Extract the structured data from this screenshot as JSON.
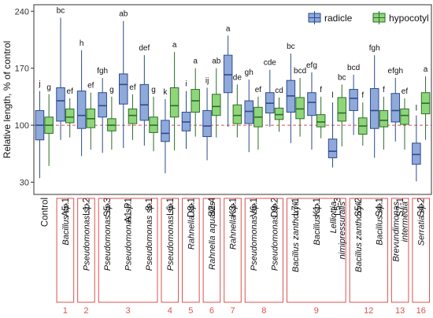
{
  "chart_data": {
    "type": "box",
    "ylabel": "Relative length, % of control",
    "yticks": [
      30,
      100,
      170,
      240
    ],
    "ylim": [
      15,
      248
    ],
    "reference_line": 100,
    "grid": false,
    "legend_position": "top-right",
    "series": [
      {
        "key": "radicle",
        "name": "radicle",
        "fill": "#8FA9DB",
        "stroke": "#2E4A8C"
      },
      {
        "key": "hypocotyl",
        "name": "hypocotyl",
        "fill": "#8FD67A",
        "stroke": "#2E6B2A"
      }
    ],
    "categories": [
      "Control",
      "A5-1",
      "L1-2",
      "S5-3",
      "A1-P1",
      "8-1",
      "L6-1",
      "D8-1",
      "S2-4",
      "K3-1",
      "V6-1",
      "D9-2",
      "L7-1",
      "K1-1",
      "L5-3",
      "S5-2",
      "S4-1",
      "S7-1",
      "S4-2"
    ],
    "boxes": [
      {
        "category": "Control",
        "radicle": {
          "min": 35,
          "q1": 82,
          "median": 100,
          "q3": 118,
          "max": 142,
          "letter": "j"
        },
        "hypocotyl": {
          "min": 50,
          "q1": 90,
          "median": 100,
          "q3": 110,
          "max": 138,
          "letter": "g"
        }
      },
      {
        "category": "A5-1",
        "radicle": {
          "min": 82,
          "q1": 105,
          "median": 130,
          "q3": 146,
          "max": 232,
          "letter": "bc"
        },
        "hypocotyl": {
          "min": 85,
          "q1": 103,
          "median": 110,
          "q3": 120,
          "max": 133,
          "letter": "ef"
        }
      },
      {
        "category": "L1-2",
        "radicle": {
          "min": 62,
          "q1": 96,
          "median": 112,
          "q3": 142,
          "max": 192,
          "letter": "h"
        },
        "hypocotyl": {
          "min": 70,
          "q1": 97,
          "median": 108,
          "q3": 120,
          "max": 140,
          "letter": "ef"
        }
      },
      {
        "category": "S5-3",
        "radicle": {
          "min": 66,
          "q1": 110,
          "median": 124,
          "q3": 140,
          "max": 158,
          "letter": "fgh"
        },
        "hypocotyl": {
          "min": 70,
          "q1": 93,
          "median": 100,
          "q3": 108,
          "max": 135,
          "letter": "g"
        }
      },
      {
        "category": "A1-P1",
        "radicle": {
          "min": 72,
          "q1": 126,
          "median": 150,
          "q3": 163,
          "max": 228,
          "letter": "ab"
        },
        "hypocotyl": {
          "min": 82,
          "q1": 102,
          "median": 112,
          "q3": 120,
          "max": 138,
          "letter": "ef"
        }
      },
      {
        "category": "8-1",
        "radicle": {
          "min": 75,
          "q1": 106,
          "median": 125,
          "q3": 150,
          "max": 186,
          "letter": "def"
        },
        "hypocotyl": {
          "min": 68,
          "q1": 91,
          "median": 100,
          "q3": 110,
          "max": 135,
          "letter": "g"
        }
      },
      {
        "category": "L6-1",
        "radicle": {
          "min": 41,
          "q1": 80,
          "median": 90,
          "q3": 106,
          "max": 132,
          "letter": "k"
        },
        "hypocotyl": {
          "min": 69,
          "q1": 110,
          "median": 124,
          "q3": 146,
          "max": 190,
          "letter": "a"
        }
      },
      {
        "category": "D8-1",
        "radicle": {
          "min": 71,
          "q1": 93,
          "median": 104,
          "q3": 116,
          "max": 142,
          "letter": "i"
        },
        "hypocotyl": {
          "min": 86,
          "q1": 116,
          "median": 130,
          "q3": 144,
          "max": 170,
          "letter": "a"
        }
      },
      {
        "category": "S2-4",
        "radicle": {
          "min": 57,
          "q1": 86,
          "median": 99,
          "q3": 118,
          "max": 146,
          "letter": "ij"
        },
        "hypocotyl": {
          "min": 85,
          "q1": 112,
          "median": 123,
          "q3": 138,
          "max": 170,
          "letter": "ab"
        }
      },
      {
        "category": "K3-1",
        "radicle": {
          "min": 98,
          "q1": 140,
          "median": 162,
          "q3": 186,
          "max": 210,
          "letter": "a"
        },
        "hypocotyl": {
          "min": 85,
          "q1": 102,
          "median": 112,
          "q3": 125,
          "max": 150,
          "letter": "de"
        }
      },
      {
        "category": "V6-1",
        "radicle": {
          "min": 67,
          "q1": 102,
          "median": 117,
          "q3": 130,
          "max": 156,
          "letter": "gh"
        },
        "hypocotyl": {
          "min": 70,
          "q1": 98,
          "median": 110,
          "q3": 122,
          "max": 135,
          "letter": "ef"
        }
      },
      {
        "category": "D9-2",
        "radicle": {
          "min": 98,
          "q1": 115,
          "median": 127,
          "q3": 140,
          "max": 168,
          "letter": "cde"
        },
        "hypocotyl": {
          "min": 92,
          "q1": 107,
          "median": 113,
          "q3": 121,
          "max": 134,
          "letter": "cd"
        }
      },
      {
        "category": "L7-1",
        "radicle": {
          "min": 78,
          "q1": 116,
          "median": 136,
          "q3": 155,
          "max": 188,
          "letter": "bc"
        },
        "hypocotyl": {
          "min": 86,
          "q1": 108,
          "median": 120,
          "q3": 134,
          "max": 158,
          "letter": "bcd"
        }
      },
      {
        "category": "K1-1",
        "radicle": {
          "min": 70,
          "q1": 112,
          "median": 128,
          "q3": 140,
          "max": 165,
          "letter": "efg"
        },
        "hypocotyl": {
          "min": 84,
          "q1": 98,
          "median": 104,
          "q3": 113,
          "max": 135,
          "letter": "f"
        }
      },
      {
        "category": "L5-3",
        "radicle": {
          "min": 48,
          "q1": 60,
          "median": 68,
          "q3": 83,
          "max": 128,
          "letter": "l"
        },
        "hypocotyl": {
          "min": 74,
          "q1": 105,
          "median": 115,
          "q3": 134,
          "max": 150,
          "letter": "bc"
        }
      },
      {
        "category": "S5-2",
        "radicle": {
          "min": 88,
          "q1": 118,
          "median": 133,
          "q3": 144,
          "max": 162,
          "letter": "bcd"
        },
        "hypocotyl": {
          "min": 75,
          "q1": 89,
          "median": 99,
          "q3": 109,
          "max": 128,
          "letter": "f"
        }
      },
      {
        "category": "S4-1",
        "radicle": {
          "min": 60,
          "q1": 96,
          "median": 118,
          "q3": 145,
          "max": 186,
          "letter": "fgh"
        },
        "hypocotyl": {
          "min": 70,
          "q1": 98,
          "median": 106,
          "q3": 118,
          "max": 135,
          "letter": "f"
        }
      },
      {
        "category": "S7-1",
        "radicle": {
          "min": 80,
          "q1": 104,
          "median": 118,
          "q3": 139,
          "max": 158,
          "letter": "efgh"
        },
        "hypocotyl": {
          "min": 70,
          "q1": 101,
          "median": 112,
          "q3": 120,
          "max": 133,
          "letter": "ef"
        }
      },
      {
        "category": "S4-2",
        "radicle": {
          "min": 31,
          "q1": 52,
          "median": 64,
          "q3": 78,
          "max": 112,
          "letter": "l"
        },
        "hypocotyl": {
          "min": 82,
          "q1": 114,
          "median": 127,
          "q3": 140,
          "max": 160,
          "letter": "a"
        }
      }
    ],
    "groups": [
      {
        "number": "1",
        "label": "Bacillus sp.",
        "label2": "",
        "start": "A5-1",
        "end": "A5-1"
      },
      {
        "number": "2",
        "label": "Pseudomonas sp.",
        "label2": "",
        "start": "L1-2",
        "end": "L1-2"
      },
      {
        "number": "3",
        "label": "Pseudomonas sp.",
        "label2": "Pseudomonas sp.",
        "start": "S5-3",
        "end": "8-1"
      },
      {
        "number": "4",
        "label": "Pseudomonas sp.",
        "label2": "",
        "start": "L6-1",
        "end": "L6-1"
      },
      {
        "number": "5",
        "label": "Rahnella sp.",
        "label2": "",
        "start": "D8-1",
        "end": "D8-1"
      },
      {
        "number": "6",
        "label": "Rahnella aquatilis",
        "label2": "",
        "start": "S2-4",
        "end": "S2-4"
      },
      {
        "number": "7",
        "label": "Rahnella sp.",
        "label2": "",
        "start": "K3-1",
        "end": "K3-1"
      },
      {
        "number": "8",
        "label": "Pseudomonas sp.",
        "label2": "",
        "start": "V6-1",
        "end": "D9-2"
      },
      {
        "number": "9",
        "label": "",
        "label2": "",
        "start": "L7-1",
        "end": "L5-3"
      },
      {
        "number": "12",
        "label": "",
        "label2": "",
        "start": "S5-2",
        "end": "S4-1"
      },
      {
        "number": "13",
        "label": "",
        "label2": "",
        "start": "S7-1",
        "end": "S7-1"
      },
      {
        "number": "16",
        "label": "Serratia sp.",
        "label2": "",
        "start": "S4-2",
        "end": "S4-2"
      }
    ],
    "species_labels": [
      {
        "category": "A5-1",
        "lines": [
          "Bacillus sp."
        ]
      },
      {
        "category": "L1-2",
        "lines": [
          "Pseudomonas sp."
        ]
      },
      {
        "category": "S5-3",
        "lines": [
          "Pseudomonas sp."
        ]
      },
      {
        "category": "A1-P1",
        "lines": [
          "Pseudomonas sp."
        ]
      },
      {
        "category": "8-1",
        "lines": [
          "Pseudomonas sp."
        ]
      },
      {
        "category": "L6-1",
        "lines": [
          "Pseudomonas sp."
        ]
      },
      {
        "category": "D8-1",
        "lines": [
          "Rahnella sp."
        ]
      },
      {
        "category": "S2-4",
        "lines": [
          "Rahnella aquatilis"
        ]
      },
      {
        "category": "K3-1",
        "lines": [
          "Rahnella sp."
        ]
      },
      {
        "category": "V6-1",
        "lines": [
          "Pseudomonas sp."
        ]
      },
      {
        "category": "D9-2",
        "lines": [
          "Pseudomonas sp."
        ]
      },
      {
        "category": "L7-1",
        "lines": [
          "Bacillus zanthoxyli"
        ]
      },
      {
        "category": "K1-1",
        "lines": [
          "Bacillus sp."
        ]
      },
      {
        "category": "L5-3",
        "lines": [
          "Lelliottia",
          "nimipressuralis"
        ]
      },
      {
        "category": "S5-2",
        "lines": [
          "Bacillus zanthoxyli"
        ]
      },
      {
        "category": "S4-1",
        "lines": [
          "Bacillus sp."
        ]
      },
      {
        "category": "S7-1",
        "lines": [
          "Brevundimonas",
          "intermedia"
        ]
      },
      {
        "category": "S4-2",
        "lines": [
          "Serratia sp."
        ]
      }
    ]
  }
}
